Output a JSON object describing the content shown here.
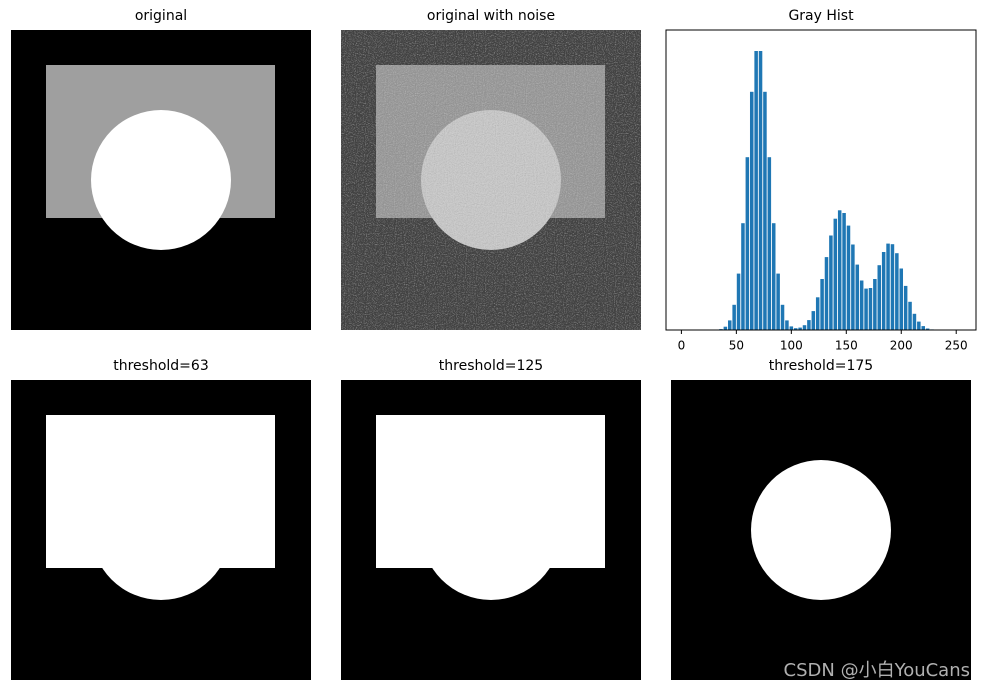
{
  "chart_data": [
    {
      "type": "image",
      "title": "original"
    },
    {
      "type": "image",
      "title": "original with noise"
    },
    {
      "type": "bar",
      "title": "Gray Hist",
      "color": "#1f77b4",
      "x": [
        20,
        24,
        28,
        32,
        36,
        40,
        44,
        48,
        52,
        56,
        60,
        64,
        68,
        72,
        76,
        80,
        84,
        88,
        92,
        96,
        100,
        104,
        108,
        112,
        116,
        120,
        124,
        128,
        132,
        136,
        140,
        144,
        148,
        152,
        156,
        160,
        164,
        168,
        172,
        176,
        180,
        184,
        188,
        192,
        196,
        200,
        204,
        208,
        212,
        216,
        220,
        224,
        228,
        232,
        236
      ],
      "values": [
        0,
        0,
        0,
        0.1,
        0.3,
        1.1,
        3.2,
        8.4,
        18.8,
        35.6,
        57.6,
        79.4,
        93,
        93,
        79.4,
        57.6,
        35.6,
        18.8,
        8.4,
        3.2,
        1.2,
        0.6,
        0.8,
        1.6,
        3.3,
        6.3,
        10.9,
        17,
        24.3,
        31.5,
        37.1,
        39.9,
        39,
        34.8,
        28.5,
        21.8,
        16.5,
        13.8,
        14,
        17,
        21.6,
        26,
        28.8,
        28.6,
        25.6,
        20.5,
        14.7,
        9.4,
        5.4,
        2.8,
        1.3,
        0.5,
        0.2,
        0.1,
        0
      ],
      "xlim": [
        -14,
        268
      ],
      "ylim": [
        0,
        100
      ],
      "xticks": [
        0,
        50,
        100,
        150,
        200,
        250
      ]
    },
    {
      "type": "image",
      "title": "threshold=63"
    },
    {
      "type": "image",
      "title": "threshold=125"
    },
    {
      "type": "image",
      "title": "threshold=175"
    }
  ],
  "watermark": "CSDN @小白YouCans"
}
